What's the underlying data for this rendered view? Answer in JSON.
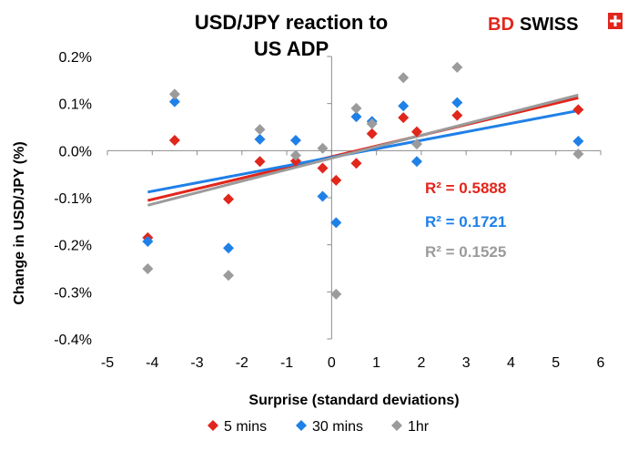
{
  "chart_data": {
    "type": "scatter",
    "title_lines": [
      "USD/JPY reaction to",
      "US ADP"
    ],
    "xlabel": "Surprise (standard deviations)",
    "ylabel": "Change in USD/JPY  (%)",
    "xlim": [
      -5,
      6
    ],
    "ylim": [
      -0.4,
      0.2
    ],
    "x_ticks": [
      "-5",
      "-4",
      "-3",
      "-2",
      "-1",
      "0",
      "1",
      "2",
      "3",
      "4",
      "5",
      "6"
    ],
    "y_ticks": [
      "0.2%",
      "0.1%",
      "0.0%",
      "-0.1%",
      "-0.2%",
      "-0.3%",
      "-0.4%"
    ],
    "grid": false,
    "legend_position": "bottom",
    "logo": {
      "part1": "BD",
      "part2": "SWISS"
    },
    "series": [
      {
        "name": "5 mins",
        "color": "#e1261c",
        "marker": "diamond",
        "points": [
          [
            -4.1,
            -0.185
          ],
          [
            -3.5,
            0.022
          ],
          [
            -2.3,
            -0.103
          ],
          [
            -1.6,
            -0.023
          ],
          [
            -0.8,
            -0.022
          ],
          [
            -0.2,
            -0.037
          ],
          [
            0.1,
            -0.063
          ],
          [
            0.55,
            -0.027
          ],
          [
            0.9,
            0.036
          ],
          [
            1.6,
            0.07
          ],
          [
            1.9,
            0.04
          ],
          [
            2.8,
            0.075
          ],
          [
            5.5,
            0.087
          ]
        ],
        "trend": {
          "x": [
            -4.1,
            5.5
          ],
          "y": [
            -0.106,
            0.112
          ]
        },
        "r2_label": "R² = 0.5888"
      },
      {
        "name": "30 mins",
        "color": "#1f80e8",
        "marker": "diamond",
        "points": [
          [
            -4.1,
            -0.193
          ],
          [
            -3.5,
            0.104
          ],
          [
            -2.3,
            -0.207
          ],
          [
            -1.6,
            0.024
          ],
          [
            -0.8,
            0.022
          ],
          [
            -0.2,
            -0.097
          ],
          [
            0.1,
            -0.153
          ],
          [
            0.55,
            0.072
          ],
          [
            0.9,
            0.062
          ],
          [
            1.6,
            0.095
          ],
          [
            1.9,
            -0.023
          ],
          [
            2.8,
            0.102
          ],
          [
            5.5,
            0.02
          ]
        ],
        "trend": {
          "x": [
            -4.1,
            5.5
          ],
          "y": [
            -0.088,
            0.085
          ]
        },
        "r2_label": "R² = 0.1721"
      },
      {
        "name": "1hr",
        "color": "#9b9b9b",
        "marker": "diamond",
        "points": [
          [
            -4.1,
            -0.251
          ],
          [
            -3.5,
            0.12
          ],
          [
            -2.3,
            -0.265
          ],
          [
            -1.6,
            0.045
          ],
          [
            -0.8,
            -0.01
          ],
          [
            -0.2,
            0.005
          ],
          [
            0.1,
            -0.305
          ],
          [
            0.55,
            0.09
          ],
          [
            0.9,
            0.057
          ],
          [
            1.6,
            0.155
          ],
          [
            1.9,
            0.014
          ],
          [
            2.8,
            0.177
          ],
          [
            5.5,
            -0.007
          ]
        ],
        "trend": {
          "x": [
            -4.1,
            5.5
          ],
          "y": [
            -0.116,
            0.118
          ]
        },
        "r2_label": "R² = 0.1525"
      }
    ]
  }
}
